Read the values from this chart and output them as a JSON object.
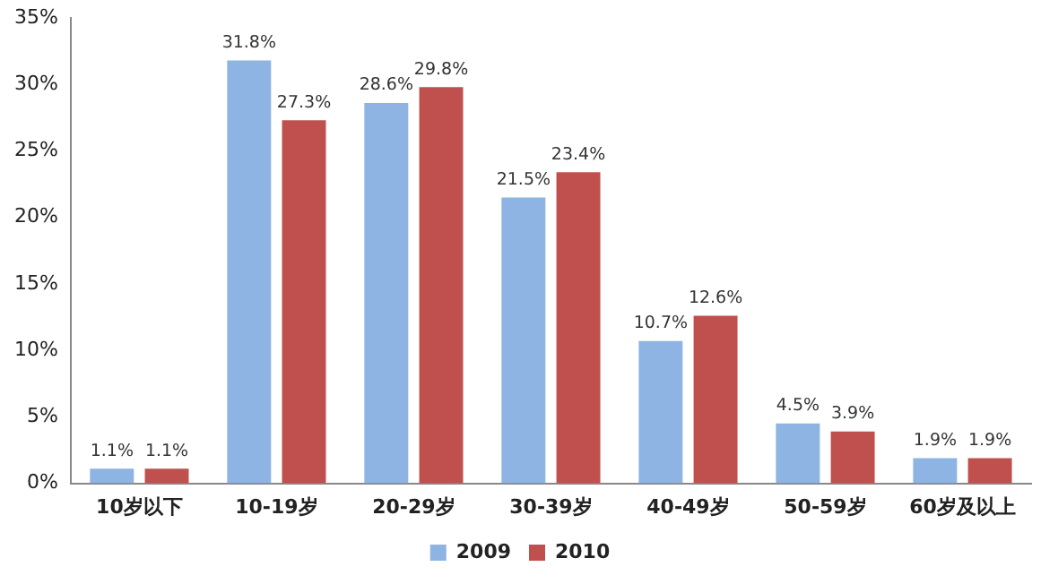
{
  "chart_data": {
    "type": "bar",
    "categories": [
      "10岁以下",
      "10-19岁",
      "20-29岁",
      "30-39岁",
      "40-49岁",
      "50-59岁",
      "60岁及以上"
    ],
    "series": [
      {
        "name": "2009",
        "color": "#8db4e2",
        "values": [
          1.1,
          31.8,
          28.6,
          21.5,
          10.7,
          4.5,
          1.9
        ],
        "value_labels": [
          "1.1%",
          "31.8%",
          "28.6%",
          "21.5%",
          "10.7%",
          "4.5%",
          "1.9%"
        ]
      },
      {
        "name": "2010",
        "color": "#c0504d",
        "values": [
          1.1,
          27.3,
          29.8,
          23.4,
          12.6,
          3.9,
          1.9
        ],
        "value_labels": [
          "1.1%",
          "27.3%",
          "29.8%",
          "23.4%",
          "12.6%",
          "3.9%",
          "1.9%"
        ]
      }
    ],
    "ylim": [
      0,
      35
    ],
    "yticks": [
      {
        "value": 0,
        "label": "0%"
      },
      {
        "value": 5,
        "label": "5%"
      },
      {
        "value": 10,
        "label": "10%"
      },
      {
        "value": 15,
        "label": "15%"
      },
      {
        "value": 20,
        "label": "20%"
      },
      {
        "value": 25,
        "label": "25%"
      },
      {
        "value": 30,
        "label": "30%"
      },
      {
        "value": 35,
        "label": "35%"
      }
    ],
    "grid": false,
    "legend": "bottom"
  }
}
